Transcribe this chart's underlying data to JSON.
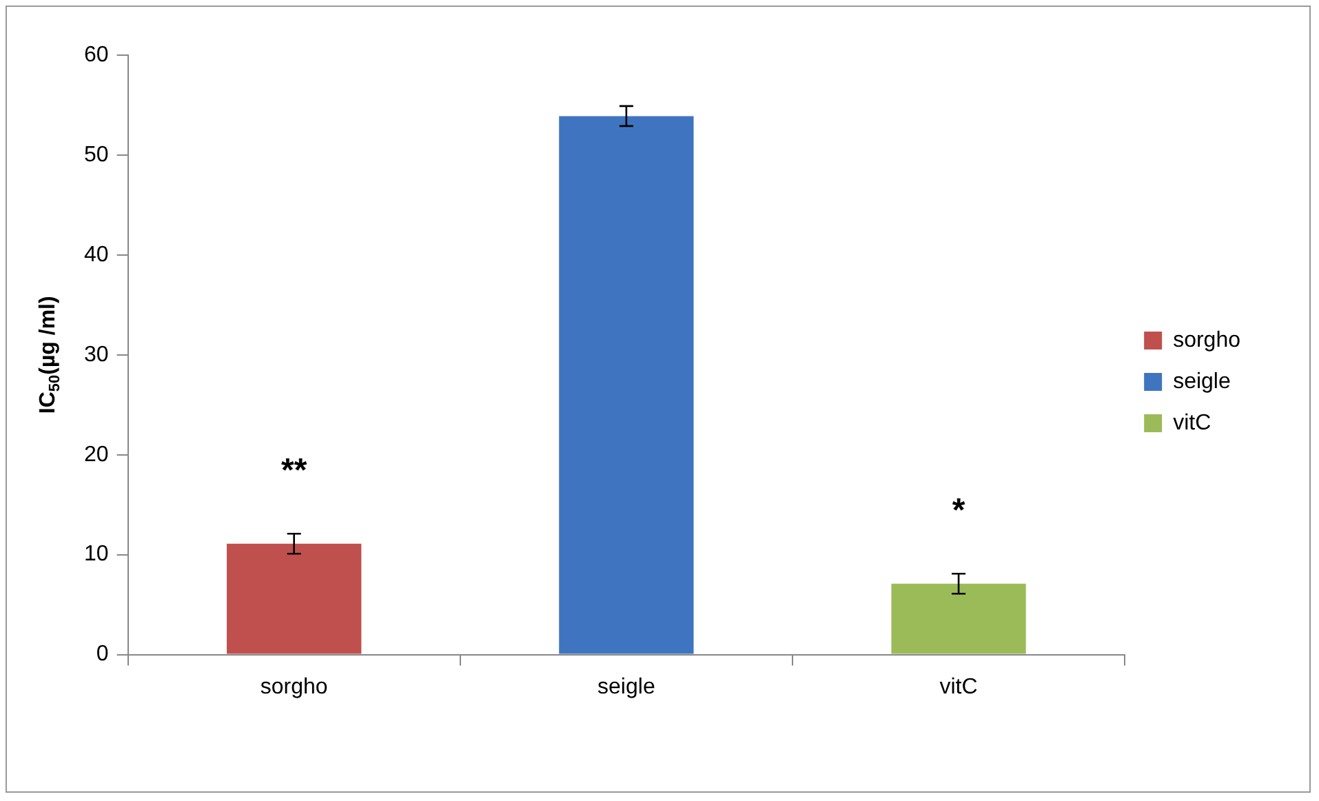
{
  "chart_data": {
    "type": "bar",
    "ylabel": "IC$_{50}$(µg /ml)",
    "categories": [
      "sorgho",
      "seigle",
      "vitC"
    ],
    "series": [
      {
        "name": "sorgho",
        "color": "#c0504d",
        "values": [
          11.1,
          null,
          null
        ],
        "errors": [
          1,
          null,
          null
        ]
      },
      {
        "name": "seigle",
        "color": "#3f75c0",
        "values": [
          null,
          53.9,
          null
        ],
        "errors": [
          null,
          1,
          null
        ]
      },
      {
        "name": "vitC",
        "color": "#9bbb59",
        "values": [
          null,
          null,
          7.1
        ],
        "errors": [
          null,
          null,
          1
        ]
      }
    ],
    "ylim": [
      0,
      60
    ],
    "yticks": [
      0,
      10,
      20,
      30,
      40,
      50,
      60
    ],
    "grid": false,
    "legend": "right",
    "annotations": [
      {
        "text": "**",
        "x": "sorgho",
        "y": 11.1
      },
      {
        "text": "*",
        "x": "vitC",
        "y": 7.1
      }
    ]
  }
}
